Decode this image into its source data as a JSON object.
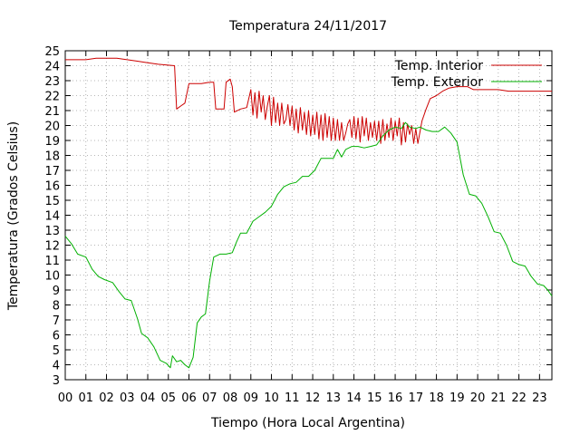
{
  "chart_data": {
    "type": "line",
    "title": "Temperatura 24/11/2017",
    "xlabel": "Tiempo (Hora Local Argentina)",
    "ylabel": "Temperatura (Grados Celsius)",
    "xlim": [
      0,
      23.6
    ],
    "ylim": [
      3,
      25
    ],
    "grid": true,
    "legend_position": "top-right",
    "x_ticks": [
      "00",
      "01",
      "02",
      "03",
      "04",
      "05",
      "06",
      "07",
      "08",
      "09",
      "10",
      "11",
      "12",
      "13",
      "14",
      "15",
      "16",
      "17",
      "18",
      "19",
      "20",
      "21",
      "22",
      "23"
    ],
    "y_ticks": [
      "3",
      "4",
      "5",
      "6",
      "7",
      "8",
      "9",
      "10",
      "11",
      "12",
      "13",
      "14",
      "15",
      "16",
      "17",
      "18",
      "19",
      "20",
      "21",
      "22",
      "23",
      "24",
      "25"
    ],
    "series": [
      {
        "name": "Temp. Interior",
        "color": "#cc0000",
        "points": [
          [
            0.0,
            24.4
          ],
          [
            0.5,
            24.4
          ],
          [
            1.0,
            24.4
          ],
          [
            1.5,
            24.5
          ],
          [
            2.0,
            24.5
          ],
          [
            2.5,
            24.5
          ],
          [
            3.0,
            24.4
          ],
          [
            3.5,
            24.3
          ],
          [
            4.0,
            24.2
          ],
          [
            4.5,
            24.1
          ],
          [
            5.3,
            24.0
          ],
          [
            5.4,
            21.1
          ],
          [
            5.6,
            21.3
          ],
          [
            5.8,
            21.5
          ],
          [
            6.0,
            22.8
          ],
          [
            6.3,
            22.8
          ],
          [
            6.6,
            22.8
          ],
          [
            7.0,
            22.9
          ],
          [
            7.2,
            22.9
          ],
          [
            7.3,
            21.1
          ],
          [
            7.7,
            21.1
          ],
          [
            7.8,
            22.9
          ],
          [
            8.0,
            23.1
          ],
          [
            8.1,
            22.6
          ],
          [
            8.2,
            20.9
          ],
          [
            8.5,
            21.1
          ],
          [
            8.8,
            21.2
          ],
          [
            9.0,
            22.4
          ],
          [
            9.1,
            20.7
          ],
          [
            9.2,
            22.2
          ],
          [
            9.3,
            20.5
          ],
          [
            9.4,
            22.3
          ],
          [
            9.5,
            20.9
          ],
          [
            9.6,
            22.0
          ],
          [
            9.7,
            20.4
          ],
          [
            9.8,
            21.3
          ],
          [
            9.9,
            22.0
          ],
          [
            10.0,
            20.0
          ],
          [
            10.1,
            21.9
          ],
          [
            10.2,
            20.2
          ],
          [
            10.3,
            21.5
          ],
          [
            10.4,
            20.0
          ],
          [
            10.5,
            21.5
          ],
          [
            10.6,
            20.1
          ],
          [
            10.7,
            20.4
          ],
          [
            10.8,
            21.4
          ],
          [
            10.9,
            20.0
          ],
          [
            11.0,
            21.3
          ],
          [
            11.1,
            19.7
          ],
          [
            11.2,
            21.1
          ],
          [
            11.3,
            19.5
          ],
          [
            11.4,
            21.2
          ],
          [
            11.5,
            19.7
          ],
          [
            11.6,
            20.9
          ],
          [
            11.7,
            19.4
          ],
          [
            11.8,
            21.0
          ],
          [
            11.9,
            19.3
          ],
          [
            12.0,
            20.7
          ],
          [
            12.1,
            19.4
          ],
          [
            12.2,
            20.9
          ],
          [
            12.3,
            19.1
          ],
          [
            12.4,
            20.7
          ],
          [
            12.5,
            19.0
          ],
          [
            12.6,
            20.8
          ],
          [
            12.7,
            19.2
          ],
          [
            12.8,
            20.6
          ],
          [
            12.9,
            19.0
          ],
          [
            13.0,
            20.5
          ],
          [
            13.1,
            19.0
          ],
          [
            13.2,
            20.4
          ],
          [
            13.3,
            19.0
          ],
          [
            13.4,
            20.2
          ],
          [
            13.5,
            19.0
          ],
          [
            13.6,
            19.5
          ],
          [
            13.7,
            20.1
          ],
          [
            13.8,
            20.4
          ],
          [
            13.9,
            19.2
          ],
          [
            14.0,
            20.6
          ],
          [
            14.1,
            19.1
          ],
          [
            14.2,
            20.5
          ],
          [
            14.3,
            18.9
          ],
          [
            14.4,
            20.6
          ],
          [
            14.5,
            19.3
          ],
          [
            14.6,
            20.5
          ],
          [
            14.7,
            19.0
          ],
          [
            14.8,
            20.2
          ],
          [
            14.9,
            19.2
          ],
          [
            15.0,
            20.3
          ],
          [
            15.1,
            19.0
          ],
          [
            15.2,
            20.3
          ],
          [
            15.3,
            18.8
          ],
          [
            15.4,
            20.4
          ],
          [
            15.5,
            19.0
          ],
          [
            15.6,
            20.1
          ],
          [
            15.7,
            19.2
          ],
          [
            15.8,
            20.5
          ],
          [
            15.9,
            19.0
          ],
          [
            16.0,
            20.3
          ],
          [
            16.1,
            19.3
          ],
          [
            16.2,
            20.5
          ],
          [
            16.3,
            18.7
          ],
          [
            16.4,
            20.2
          ],
          [
            16.5,
            18.9
          ],
          [
            16.6,
            20.1
          ],
          [
            16.7,
            19.4
          ],
          [
            16.8,
            20.0
          ],
          [
            16.9,
            18.8
          ],
          [
            17.0,
            19.8
          ],
          [
            17.1,
            18.8
          ],
          [
            17.3,
            20.3
          ],
          [
            17.5,
            21.1
          ],
          [
            17.7,
            21.8
          ],
          [
            18.0,
            22.0
          ],
          [
            18.3,
            22.3
          ],
          [
            18.6,
            22.5
          ],
          [
            19.0,
            22.6
          ],
          [
            19.5,
            22.6
          ],
          [
            19.8,
            22.4
          ],
          [
            20.5,
            22.4
          ],
          [
            21.0,
            22.4
          ],
          [
            21.5,
            22.3
          ],
          [
            22.0,
            22.3
          ],
          [
            22.5,
            22.3
          ],
          [
            23.0,
            22.3
          ],
          [
            23.6,
            22.3
          ]
        ]
      },
      {
        "name": "Temp. Exterior",
        "color": "#00b000",
        "points": [
          [
            0.0,
            12.6
          ],
          [
            0.3,
            12.1
          ],
          [
            0.6,
            11.4
          ],
          [
            1.0,
            11.2
          ],
          [
            1.3,
            10.4
          ],
          [
            1.6,
            9.9
          ],
          [
            1.9,
            9.7
          ],
          [
            2.3,
            9.5
          ],
          [
            2.6,
            8.9
          ],
          [
            2.9,
            8.4
          ],
          [
            3.2,
            8.3
          ],
          [
            3.5,
            7.1
          ],
          [
            3.7,
            6.1
          ],
          [
            4.0,
            5.8
          ],
          [
            4.3,
            5.2
          ],
          [
            4.6,
            4.3
          ],
          [
            4.9,
            4.1
          ],
          [
            5.1,
            3.8
          ],
          [
            5.2,
            4.6
          ],
          [
            5.4,
            4.2
          ],
          [
            5.6,
            4.3
          ],
          [
            5.8,
            4.0
          ],
          [
            6.0,
            3.8
          ],
          [
            6.2,
            4.5
          ],
          [
            6.4,
            6.8
          ],
          [
            6.6,
            7.2
          ],
          [
            6.8,
            7.4
          ],
          [
            7.0,
            9.6
          ],
          [
            7.2,
            11.2
          ],
          [
            7.5,
            11.4
          ],
          [
            7.8,
            11.4
          ],
          [
            8.1,
            11.5
          ],
          [
            8.3,
            12.2
          ],
          [
            8.5,
            12.8
          ],
          [
            8.8,
            12.8
          ],
          [
            9.1,
            13.6
          ],
          [
            9.4,
            13.9
          ],
          [
            9.7,
            14.2
          ],
          [
            10.0,
            14.6
          ],
          [
            10.3,
            15.4
          ],
          [
            10.6,
            15.9
          ],
          [
            10.9,
            16.1
          ],
          [
            11.2,
            16.2
          ],
          [
            11.5,
            16.6
          ],
          [
            11.8,
            16.6
          ],
          [
            12.1,
            17.0
          ],
          [
            12.4,
            17.8
          ],
          [
            12.7,
            17.8
          ],
          [
            13.0,
            17.8
          ],
          [
            13.2,
            18.4
          ],
          [
            13.4,
            17.9
          ],
          [
            13.6,
            18.4
          ],
          [
            13.9,
            18.6
          ],
          [
            14.2,
            18.6
          ],
          [
            14.5,
            18.5
          ],
          [
            14.8,
            18.6
          ],
          [
            15.1,
            18.7
          ],
          [
            15.4,
            19.3
          ],
          [
            15.7,
            19.7
          ],
          [
            16.0,
            19.9
          ],
          [
            16.3,
            19.8
          ],
          [
            16.5,
            20.2
          ],
          [
            16.7,
            19.9
          ],
          [
            17.0,
            19.8
          ],
          [
            17.2,
            19.9
          ],
          [
            17.5,
            19.7
          ],
          [
            17.8,
            19.6
          ],
          [
            18.1,
            19.6
          ],
          [
            18.4,
            19.9
          ],
          [
            18.7,
            19.5
          ],
          [
            19.0,
            18.9
          ],
          [
            19.3,
            16.7
          ],
          [
            19.6,
            15.4
          ],
          [
            19.9,
            15.3
          ],
          [
            20.2,
            14.8
          ],
          [
            20.5,
            13.9
          ],
          [
            20.8,
            12.9
          ],
          [
            21.1,
            12.8
          ],
          [
            21.4,
            12.0
          ],
          [
            21.7,
            10.9
          ],
          [
            22.0,
            10.7
          ],
          [
            22.3,
            10.6
          ],
          [
            22.6,
            9.9
          ],
          [
            22.9,
            9.4
          ],
          [
            23.2,
            9.3
          ],
          [
            23.4,
            9.0
          ],
          [
            23.6,
            8.6
          ]
        ]
      }
    ]
  }
}
